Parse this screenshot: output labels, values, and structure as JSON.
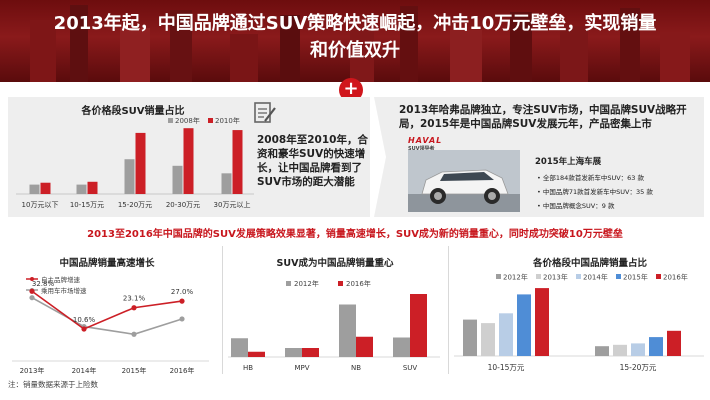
{
  "header": {
    "title_line1": "2013年起，中国品牌通过SUV策略快速崛起，冲击10万元壁垒，实现销量",
    "title_line2": "和价值双升"
  },
  "badge": "+",
  "chart1": {
    "title": "各价格段SUV销量占比",
    "type": "bar",
    "legend": [
      "2008年",
      "2010年"
    ],
    "categories": [
      "10万元以下",
      "10-15万元",
      "15-20万元",
      "20-30万元",
      "30万元以上"
    ],
    "series": [
      {
        "name": "2008年",
        "values": [
          1.0,
          1.0,
          3.7,
          3.0,
          2.2
        ]
      },
      {
        "name": "2010年",
        "values": [
          1.2,
          1.3,
          6.5,
          7.0,
          6.8
        ]
      }
    ],
    "colors": [
      "#9e9e9e",
      "#cc1f26"
    ]
  },
  "note_icon": "document-pen-icon",
  "note_text": "2008年至2010年，合资和豪华SUV的快速增长，让中国品牌看到了SUV市场的距大潜能",
  "right_text": "2013年哈弗品牌独立，专注SUV市场，中国品牌SUV战略开局，2015年是中国品牌SUV发展元年，产品密集上市",
  "car": {
    "logo": "HAVAL",
    "logo_sub": "SUV领导者"
  },
  "shanghai": {
    "title": "2015年上海车展",
    "items": [
      "全部184款首发新车中SUV：63 款",
      "中国品牌71款首发新车中SUV：35 款",
      "中国品牌概念SUV：9 款"
    ]
  },
  "subtitle": "2013至2016年中国品牌的SUV发展策略效果显著，销量高速增长，SUV成为新的销量重心，同时成功突破10万元壁垒",
  "chart_data": [
    {
      "type": "line",
      "title": "中国品牌销量高速增长",
      "categories": [
        "2013年",
        "2014年",
        "2015年",
        "2016年"
      ],
      "series": [
        {
          "name": "自主品牌增速",
          "values": [
            32.8,
            10.6,
            23.1,
            27.0
          ],
          "color": "#cc1f26"
        },
        {
          "name": "乘用车市场增速",
          "values": [
            29.0,
            12.0,
            7.5,
            16.5
          ],
          "color": "#9e9e9e"
        }
      ],
      "labels": [
        "32.8%",
        "10.6%",
        "23.1%",
        "27.0%"
      ]
    },
    {
      "type": "bar",
      "title": "SUV成为中国品牌销量重心",
      "categories": [
        "HB",
        "MPV",
        "NB",
        "SUV"
      ],
      "series": [
        {
          "name": "2012年",
          "values": [
            25,
            12,
            70,
            26
          ],
          "color": "#9e9e9e"
        },
        {
          "name": "2016年",
          "values": [
            7,
            12,
            27,
            84
          ],
          "color": "#cc1f26"
        }
      ]
    },
    {
      "type": "bar",
      "title": "各价格段中国品牌销量占比",
      "categories": [
        "10-15万元",
        "15-20万元"
      ],
      "series": [
        {
          "name": "2012年",
          "values": [
            52,
            14
          ],
          "color": "#9e9e9e"
        },
        {
          "name": "2013年",
          "values": [
            47,
            16
          ],
          "color": "#cfcfcf"
        },
        {
          "name": "2014年",
          "values": [
            61,
            18
          ],
          "color": "#b8cde6"
        },
        {
          "name": "2015年",
          "values": [
            88,
            27
          ],
          "color": "#4f8dd6"
        },
        {
          "name": "2016年",
          "values": [
            97,
            36
          ],
          "color": "#cc1f26"
        }
      ]
    }
  ],
  "footnote": "注：销量数据来源于上险数"
}
